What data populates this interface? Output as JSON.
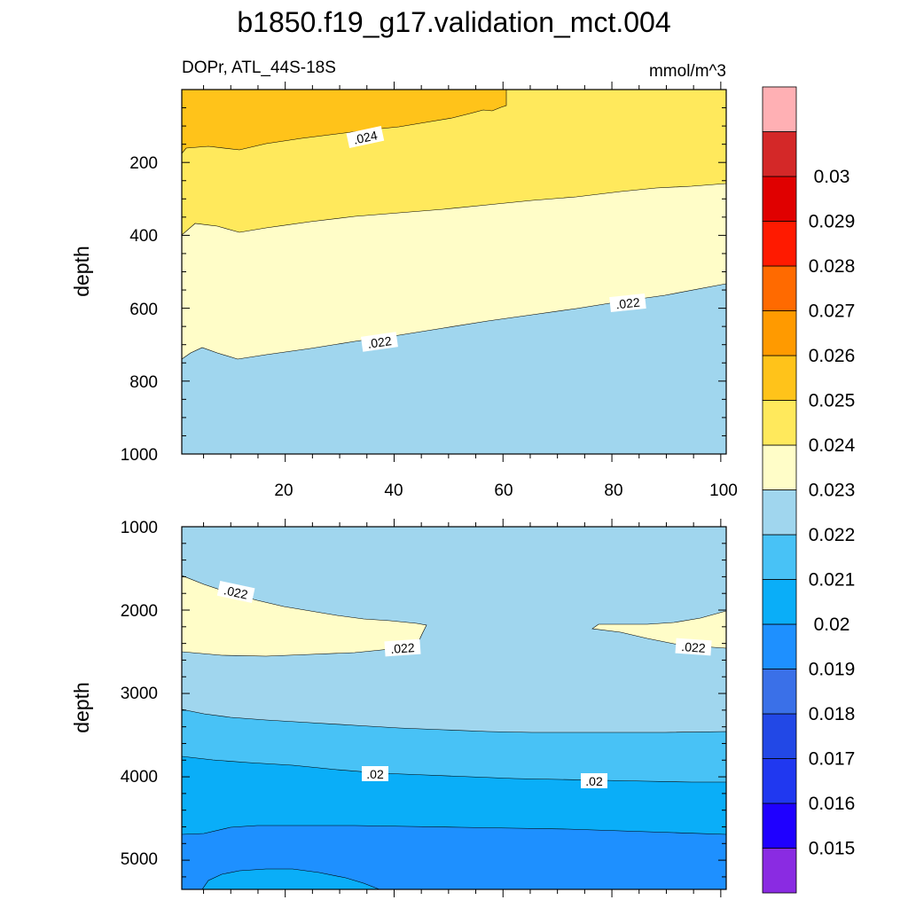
{
  "chart_data": {
    "title": "b1850.f19_g17.validation_mct.004",
    "colorbar": {
      "levels": [
        "0.015",
        "0.016",
        "0.017",
        "0.018",
        "0.019",
        "0.02",
        "0.021",
        "0.022",
        "0.023",
        "0.024",
        "0.025",
        "0.026",
        "0.027",
        "0.028",
        "0.029",
        "0.03"
      ],
      "colors_bottom_to_top": [
        "#8a2be2",
        "#1f00ff",
        "#2038f0",
        "#2248e6",
        "#3a70e8",
        "#1e90ff",
        "#0aaef8",
        "#48c2f6",
        "#a0d6ee",
        "#fffdc8",
        "#ffe95c",
        "#ffc31a",
        "#ff9a00",
        "#ff6a00",
        "#ff1a00",
        "#e00000",
        "#d42828",
        "#ffb0b4"
      ]
    },
    "panels": [
      {
        "type": "contour",
        "subtitle_left": "DOPr, ATL_44S-18S",
        "subtitle_right": "mmol/m^3",
        "ylabel": "depth",
        "xlim": [
          1,
          101
        ],
        "ylim": [
          1000,
          0
        ],
        "xticks": [
          "20",
          "40",
          "60",
          "80",
          "100"
        ],
        "yticks": [
          "200",
          "400",
          "600",
          "800",
          "1000"
        ],
        "contour_labels": [
          ".024",
          ".022",
          ".022"
        ],
        "regions": [
          {
            "level": "0.024-0.025",
            "color": "#ffc31a"
          },
          {
            "level": "0.023-0.024",
            "color": "#ffe95c"
          },
          {
            "level": "0.022-0.023",
            "color": "#fffdc8"
          },
          {
            "level": "0.021-0.022",
            "color": "#a0d6ee"
          }
        ]
      },
      {
        "type": "contour",
        "ylabel": "depth",
        "xlim": [
          1,
          101
        ],
        "ylim": [
          5350,
          1000
        ],
        "yticks": [
          "1000",
          "2000",
          "3000",
          "4000",
          "5000"
        ],
        "contour_labels": [
          ".022",
          ".022",
          ".022",
          ".02",
          ".02"
        ],
        "regions": [
          {
            "level": "0.022-0.023",
            "color": "#fffdc8"
          },
          {
            "level": "0.021-0.022",
            "color": "#a0d6ee"
          },
          {
            "level": "0.02-0.021",
            "color": "#48c2f6"
          },
          {
            "level": "0.019-0.02",
            "color": "#0aaef8"
          },
          {
            "level": "0.018-0.019",
            "color": "#1e90ff"
          }
        ]
      }
    ]
  }
}
